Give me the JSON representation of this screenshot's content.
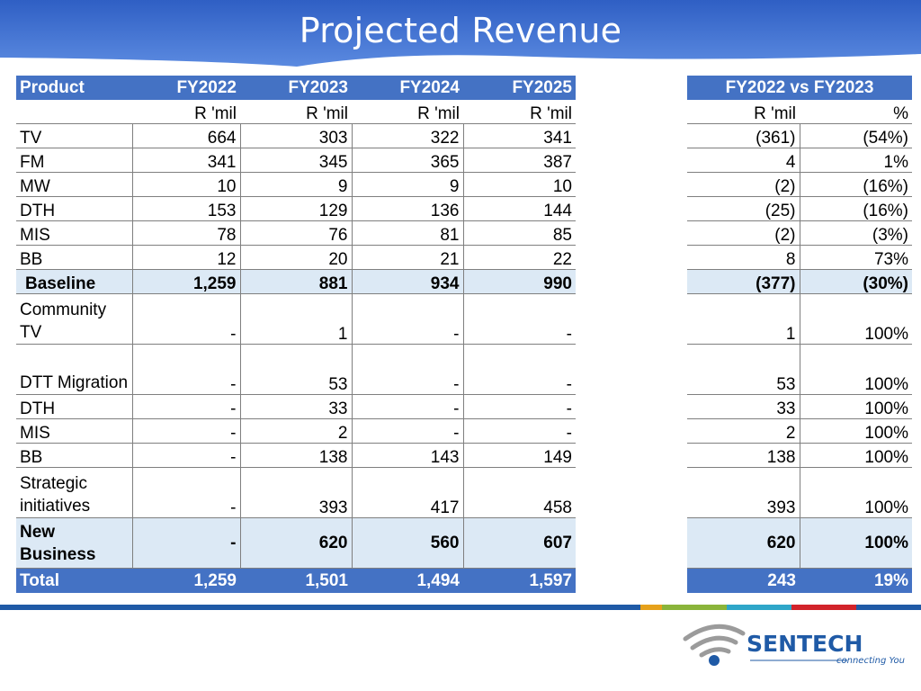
{
  "slide": {
    "title": "Projected Revenue"
  },
  "main_table": {
    "header": [
      "Product",
      "FY2022",
      "FY2023",
      "FY2024",
      "FY2025"
    ],
    "units": [
      "",
      "R 'mil",
      "R 'mil",
      "R 'mil",
      "R 'mil"
    ],
    "rows": [
      {
        "label": "TV",
        "values": [
          "664",
          "303",
          "322",
          "341"
        ]
      },
      {
        "label": "FM",
        "values": [
          "341",
          "345",
          "365",
          "387"
        ]
      },
      {
        "label": "MW",
        "values": [
          "10",
          "9",
          "9",
          "10"
        ]
      },
      {
        "label": "DTH",
        "values": [
          "153",
          "129",
          "136",
          "144"
        ]
      },
      {
        "label": "MIS",
        "values": [
          "78",
          "76",
          "81",
          "85"
        ]
      },
      {
        "label": "BB",
        "values": [
          "12",
          "20",
          "21",
          "22"
        ]
      },
      {
        "label": "Baseline",
        "values": [
          "1,259",
          "881",
          "934",
          "990"
        ]
      },
      {
        "label": "Community TV",
        "values": [
          "-",
          "1",
          "-",
          "-"
        ]
      },
      {
        "label": "DTT Migration",
        "values": [
          "-",
          "53",
          "-",
          "-"
        ]
      },
      {
        "label": "DTH",
        "values": [
          "-",
          "33",
          "-",
          "-"
        ]
      },
      {
        "label": "MIS",
        "values": [
          "-",
          "2",
          "-",
          "-"
        ]
      },
      {
        "label": "BB",
        "values": [
          "-",
          "138",
          "143",
          "149"
        ]
      },
      {
        "label": "Strategic initiatives",
        "values": [
          "-",
          "393",
          "417",
          "458"
        ]
      },
      {
        "label": "New Business",
        "values": [
          "-",
          "620",
          "560",
          "607"
        ]
      },
      {
        "label": "Total",
        "values": [
          "1,259",
          "1,501",
          "1,494",
          "1,597"
        ]
      }
    ]
  },
  "comparison_table": {
    "header": "FY2022 vs FY2023",
    "units": [
      "R 'mil",
      "%"
    ],
    "rows": [
      [
        "(361)",
        "(54%)"
      ],
      [
        "4",
        "1%"
      ],
      [
        "(2)",
        "(16%)"
      ],
      [
        "(25)",
        "(16%)"
      ],
      [
        "(2)",
        "(3%)"
      ],
      [
        "8",
        "73%"
      ],
      [
        "(377)",
        "(30%)"
      ],
      [
        "1",
        "100%"
      ],
      [
        "53",
        "100%"
      ],
      [
        "33",
        "100%"
      ],
      [
        "2",
        "100%"
      ],
      [
        "138",
        "100%"
      ],
      [
        "393",
        "100%"
      ],
      [
        "620",
        "100%"
      ],
      [
        "243",
        "19%"
      ]
    ]
  },
  "logo": {
    "name": "SENTECH",
    "tagline": "connecting You"
  },
  "colors": {
    "header_blue": "#4472c4",
    "subtotal_fill": "#dce9f5",
    "banner_blue": "#3a6fd0",
    "logo_text": "#1f5aa6",
    "logo_swoosh": "#9b9b9b"
  }
}
